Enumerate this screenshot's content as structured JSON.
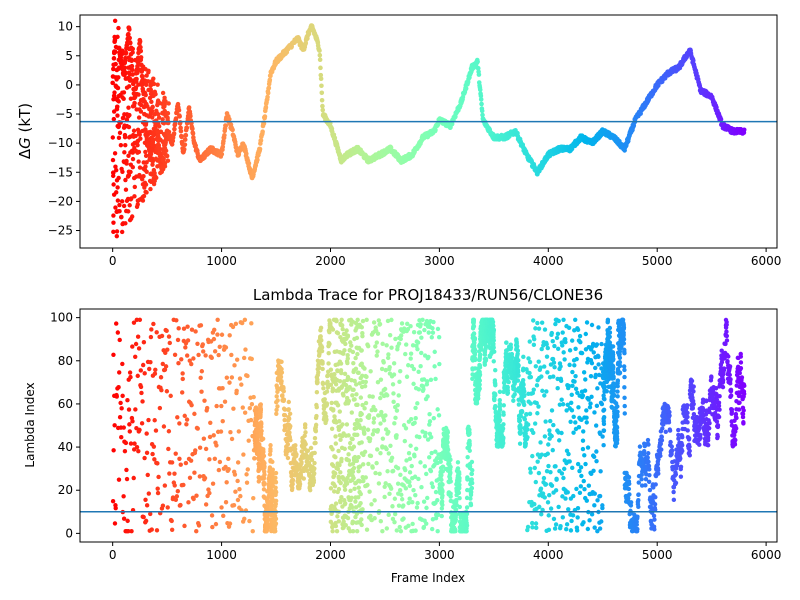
{
  "chart_data": [
    {
      "type": "scatter",
      "title": "",
      "xlabel": "",
      "ylabel": "ΔG (kT)",
      "ylabel_parts": {
        "symbol": "Δ",
        "italic": "G",
        "unit": " (kT)"
      },
      "xlim": [
        -300,
        6100
      ],
      "ylim": [
        -28,
        12
      ],
      "xticks": [
        0,
        1000,
        2000,
        3000,
        4000,
        5000,
        6000
      ],
      "xtick_labels": [
        "0",
        "1000",
        "2000",
        "3000",
        "4000",
        "5000",
        "6000"
      ],
      "yticks": [
        -25,
        -20,
        -15,
        -10,
        -5,
        0,
        5,
        10
      ],
      "ytick_labels": [
        "−25",
        "−20",
        "−15",
        "−10",
        "−5",
        "0",
        "5",
        "10"
      ],
      "hline": -6.3,
      "hline_color": "#1f77b4",
      "colormap": "rainbow (red at frame 0 → violet at last frame)",
      "x_max": 5800,
      "trace_keypoints": [
        [
          0,
          0
        ],
        [
          20,
          8
        ],
        [
          40,
          -5
        ],
        [
          60,
          6
        ],
        [
          100,
          2
        ],
        [
          150,
          10
        ],
        [
          200,
          -3
        ],
        [
          250,
          8
        ],
        [
          300,
          -8
        ],
        [
          350,
          -12
        ],
        [
          400,
          -6
        ],
        [
          450,
          -15
        ],
        [
          500,
          -8
        ],
        [
          550,
          -10
        ],
        [
          600,
          -3
        ],
        [
          650,
          -12
        ],
        [
          700,
          -4
        ],
        [
          750,
          -10
        ],
        [
          800,
          -13
        ],
        [
          900,
          -11
        ],
        [
          1000,
          -12
        ],
        [
          1050,
          -5
        ],
        [
          1100,
          -8
        ],
        [
          1150,
          -12
        ],
        [
          1200,
          -10
        ],
        [
          1280,
          -16
        ],
        [
          1350,
          -11
        ],
        [
          1400,
          -5
        ],
        [
          1450,
          2
        ],
        [
          1500,
          4
        ],
        [
          1600,
          6
        ],
        [
          1700,
          8
        ],
        [
          1750,
          6
        ],
        [
          1800,
          9
        ],
        [
          1830,
          10
        ],
        [
          1870,
          8
        ],
        [
          1900,
          6
        ],
        [
          1930,
          -5
        ],
        [
          2000,
          -7
        ],
        [
          2050,
          -10
        ],
        [
          2100,
          -13
        ],
        [
          2150,
          -12
        ],
        [
          2250,
          -11
        ],
        [
          2350,
          -13
        ],
        [
          2450,
          -12
        ],
        [
          2550,
          -11
        ],
        [
          2650,
          -13
        ],
        [
          2750,
          -12
        ],
        [
          2850,
          -9
        ],
        [
          2950,
          -8
        ],
        [
          3000,
          -6
        ],
        [
          3100,
          -7
        ],
        [
          3200,
          -3
        ],
        [
          3300,
          3
        ],
        [
          3350,
          4
        ],
        [
          3400,
          -6
        ],
        [
          3500,
          -9
        ],
        [
          3600,
          -9
        ],
        [
          3700,
          -8
        ],
        [
          3800,
          -12
        ],
        [
          3900,
          -15
        ],
        [
          4000,
          -12
        ],
        [
          4100,
          -11
        ],
        [
          4200,
          -11
        ],
        [
          4300,
          -9
        ],
        [
          4400,
          -10
        ],
        [
          4500,
          -8
        ],
        [
          4600,
          -9
        ],
        [
          4700,
          -11
        ],
        [
          4800,
          -6
        ],
        [
          4900,
          -3
        ],
        [
          5000,
          0
        ],
        [
          5100,
          2
        ],
        [
          5200,
          3
        ],
        [
          5300,
          6
        ],
        [
          5400,
          -1
        ],
        [
          5500,
          -2
        ],
        [
          5600,
          -7
        ],
        [
          5700,
          -8
        ],
        [
          5800,
          -8
        ]
      ],
      "trace_noise": 0.8,
      "early_scatter": {
        "x_range": [
          0,
          520
        ],
        "y_range": [
          -27,
          12
        ],
        "count": 420
      }
    },
    {
      "type": "scatter",
      "title": "Lambda Trace for PROJ18433/RUN56/CLONE36",
      "xlabel": "Frame Index",
      "ylabel": "Lambda Index",
      "xlim": [
        -300,
        6100
      ],
      "ylim": [
        -4,
        104
      ],
      "xticks": [
        0,
        1000,
        2000,
        3000,
        4000,
        5000,
        6000
      ],
      "xtick_labels": [
        "0",
        "1000",
        "2000",
        "3000",
        "4000",
        "5000",
        "6000"
      ],
      "yticks": [
        0,
        20,
        40,
        60,
        80,
        100
      ],
      "ytick_labels": [
        "0",
        "20",
        "40",
        "60",
        "80",
        "100"
      ],
      "hline": 10,
      "hline_color": "#1f77b4",
      "colormap": "rainbow (red at frame 0 → violet at last frame)",
      "x_max": 5800,
      "point_count": 4200,
      "lambda_walk_segments": [
        {
          "x": [
            0,
            1300
          ],
          "y": [
            0,
            100
          ],
          "mode": "uniform"
        },
        {
          "x": [
            1300,
            1500
          ],
          "y": [
            0,
            60
          ],
          "mode": "walk"
        },
        {
          "x": [
            1500,
            2000
          ],
          "y": [
            20,
            100
          ],
          "mode": "walk"
        },
        {
          "x": [
            2000,
            2300
          ],
          "y": [
            0,
            100
          ],
          "mode": "uniform"
        },
        {
          "x": [
            2300,
            3000
          ],
          "y": [
            0,
            100
          ],
          "mode": "uniform"
        },
        {
          "x": [
            3000,
            3300
          ],
          "y": [
            0,
            50
          ],
          "mode": "walk"
        },
        {
          "x": [
            3300,
            3500
          ],
          "y": [
            60,
            100
          ],
          "mode": "walk"
        },
        {
          "x": [
            3500,
            3800
          ],
          "y": [
            40,
            90
          ],
          "mode": "walk"
        },
        {
          "x": [
            3800,
            4500
          ],
          "y": [
            0,
            100
          ],
          "mode": "uniform"
        },
        {
          "x": [
            4500,
            4700
          ],
          "y": [
            40,
            100
          ],
          "mode": "walk"
        },
        {
          "x": [
            4700,
            5300
          ],
          "y": [
            0,
            60
          ],
          "mode": "walk"
        },
        {
          "x": [
            5300,
            5800
          ],
          "y": [
            40,
            100
          ],
          "mode": "walk"
        }
      ]
    }
  ]
}
